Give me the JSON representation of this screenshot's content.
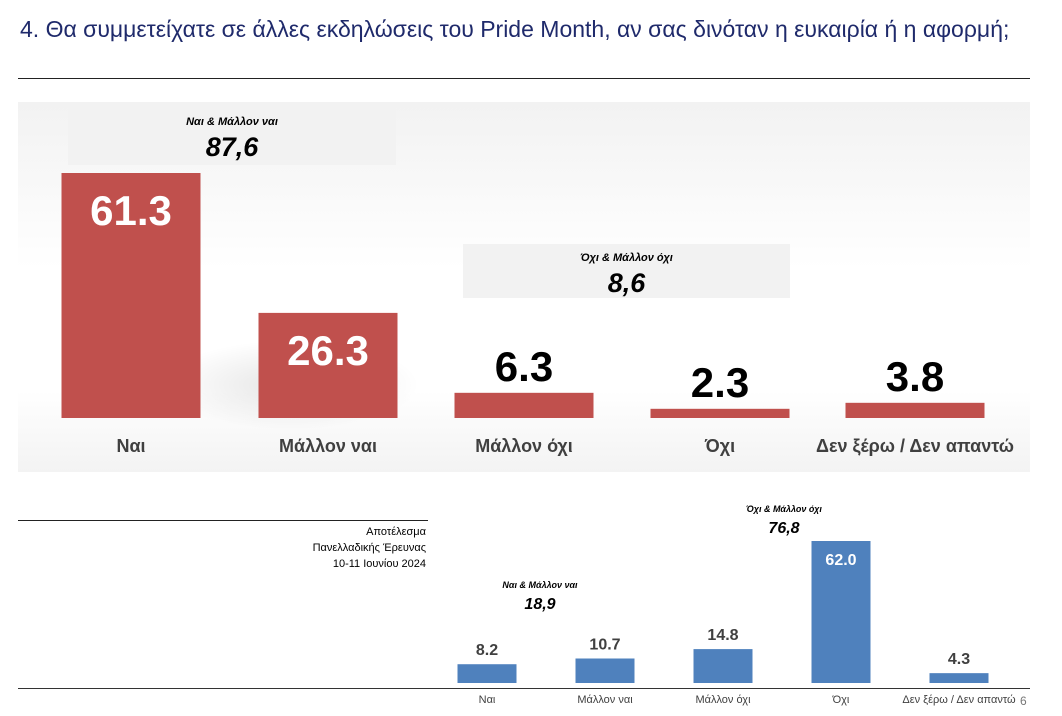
{
  "title": "4. Θα συμμετείχατε σε άλλες εκδηλώσεις του Pride Month, αν σας δινόταν η ευκαιρία ή η αφορμή;",
  "meta": {
    "line1": "Αποτέλεσμα",
    "line2": "Πανελλαδικής Έρευνας",
    "line3": "10-11 Ιουνίου 2024"
  },
  "page_number": "6",
  "colors": {
    "main_bar": "#c0504d",
    "small_bar": "#4f81bd",
    "title": "#1f2a6b"
  },
  "chart_data": [
    {
      "type": "bar",
      "categories": [
        "Ναι",
        "Μάλλον ναι",
        "Μάλλον όχι",
        "Όχι",
        "Δεν ξέρω / Δεν απαντώ"
      ],
      "values": [
        61.3,
        26.3,
        6.3,
        2.3,
        3.8
      ],
      "value_labels": [
        "61.3",
        "26.3",
        "6.3",
        "2.3",
        "3.8"
      ],
      "ylim": [
        0,
        61.3
      ],
      "groups": [
        {
          "label": "Ναι & Μάλλον ναι",
          "value": "87,6"
        },
        {
          "label": "Όχι & Μάλλον όχι",
          "value": "8,6"
        }
      ]
    },
    {
      "type": "bar",
      "categories": [
        "Ναι",
        "Μάλλον ναι",
        "Μάλλον όχι",
        "Όχι",
        "Δεν ξέρω / Δεν απαντώ"
      ],
      "values": [
        8.2,
        10.7,
        14.8,
        62.0,
        4.3
      ],
      "value_labels": [
        "8.2",
        "10.7",
        "14.8",
        "62.0",
        "4.3"
      ],
      "ylim": [
        0,
        62.0
      ],
      "groups": [
        {
          "label": "Ναι & Μάλλον ναι",
          "value": "18,9"
        },
        {
          "label": "Όχι & Μάλλον όχι",
          "value": "76,8"
        }
      ]
    }
  ]
}
